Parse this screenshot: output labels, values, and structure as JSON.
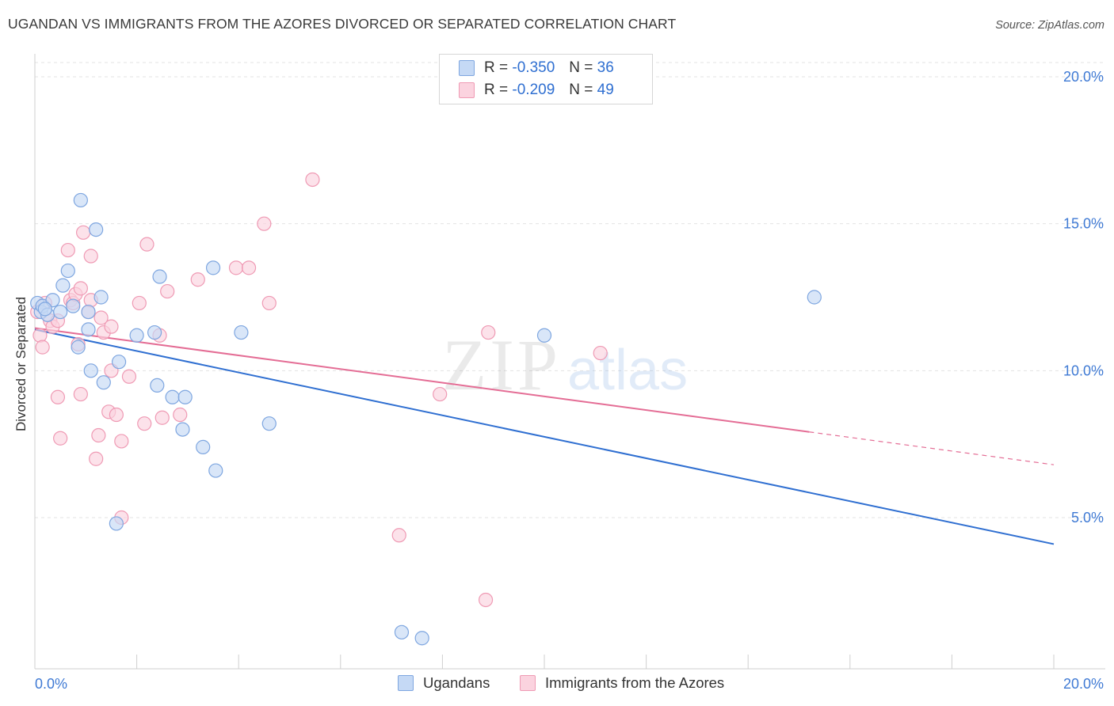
{
  "header": {
    "title": "UGANDAN VS IMMIGRANTS FROM THE AZORES DIVORCED OR SEPARATED CORRELATION CHART",
    "source": "Source: ZipAtlas.com"
  },
  "watermark": {
    "zip": "ZIP",
    "atlas": "atlas"
  },
  "legend": {
    "rows": [
      {
        "r_label": "R =",
        "r_value": "-0.350",
        "n_label": "N =",
        "n_value": "36"
      },
      {
        "r_label": "R =",
        "r_value": "-0.209",
        "n_label": "N =",
        "n_value": "49"
      }
    ]
  },
  "bottom_legend": {
    "series1": "Ugandans",
    "series2": "Immigrants from the Azores"
  },
  "colors": {
    "blue_fill": "#c5d9f5",
    "blue_stroke": "#7ea6e0",
    "blue_line": "#2f6fd1",
    "pink_fill": "#fbd3df",
    "pink_stroke": "#ef9ab4",
    "pink_line": "#e46d95",
    "grid": "#e3e3e3",
    "tick_text": "#3f7ad4"
  },
  "chart_data": {
    "type": "scatter",
    "title": "UGANDAN VS IMMIGRANTS FROM THE AZORES DIVORCED OR SEPARATED CORRELATION CHART",
    "xlabel": "",
    "ylabel": "Divorced or Separated",
    "xlim": [
      0,
      20
    ],
    "ylim": [
      0,
      20.5
    ],
    "x_tick_labels": [
      "0.0%",
      "20.0%"
    ],
    "y_ticks": [
      5,
      10,
      15,
      20
    ],
    "y_tick_labels": [
      "5.0%",
      "10.0%",
      "15.0%",
      "20.0%"
    ],
    "series": [
      {
        "name": "Ugandans",
        "r": -0.35,
        "n": 36,
        "trend": {
          "x0": 0,
          "y0": 11.4,
          "x1": 20,
          "y1": 4.1,
          "dashed_from": null
        },
        "points": [
          [
            0.05,
            12.3
          ],
          [
            0.12,
            12.0
          ],
          [
            0.15,
            12.2
          ],
          [
            0.25,
            11.9
          ],
          [
            0.35,
            12.4
          ],
          [
            0.5,
            12.0
          ],
          [
            0.55,
            12.9
          ],
          [
            0.65,
            13.4
          ],
          [
            0.75,
            12.2
          ],
          [
            0.85,
            10.8
          ],
          [
            0.9,
            15.8
          ],
          [
            1.05,
            12.0
          ],
          [
            1.05,
            11.4
          ],
          [
            1.1,
            10.0
          ],
          [
            1.2,
            14.8
          ],
          [
            1.3,
            12.5
          ],
          [
            1.35,
            9.6
          ],
          [
            1.65,
            10.3
          ],
          [
            1.6,
            4.8
          ],
          [
            2.0,
            11.2
          ],
          [
            2.35,
            11.3
          ],
          [
            2.4,
            9.5
          ],
          [
            2.45,
            13.2
          ],
          [
            2.7,
            9.1
          ],
          [
            2.9,
            8.0
          ],
          [
            2.95,
            9.1
          ],
          [
            3.3,
            7.4
          ],
          [
            3.5,
            13.5
          ],
          [
            3.55,
            6.6
          ],
          [
            4.05,
            11.3
          ],
          [
            4.6,
            8.2
          ],
          [
            7.2,
            1.1
          ],
          [
            7.6,
            0.9
          ],
          [
            10.0,
            11.2
          ],
          [
            15.3,
            12.5
          ],
          [
            0.2,
            12.1
          ]
        ]
      },
      {
        "name": "Immigrants from the Azores",
        "r": -0.209,
        "n": 49,
        "trend": {
          "x0": 0,
          "y0": 11.45,
          "x1": 20,
          "y1": 6.8,
          "dashed_from": 15.2
        },
        "points": [
          [
            0.05,
            12.0
          ],
          [
            0.1,
            11.2
          ],
          [
            0.15,
            10.8
          ],
          [
            0.2,
            12.3
          ],
          [
            0.3,
            11.7
          ],
          [
            0.35,
            11.5
          ],
          [
            0.45,
            11.7
          ],
          [
            0.45,
            9.1
          ],
          [
            0.5,
            7.7
          ],
          [
            0.65,
            14.1
          ],
          [
            0.7,
            12.4
          ],
          [
            0.75,
            12.3
          ],
          [
            0.8,
            12.6
          ],
          [
            0.85,
            10.9
          ],
          [
            0.9,
            9.2
          ],
          [
            0.9,
            12.8
          ],
          [
            0.95,
            14.7
          ],
          [
            1.05,
            12.0
          ],
          [
            1.1,
            12.4
          ],
          [
            1.1,
            13.9
          ],
          [
            1.2,
            7.0
          ],
          [
            1.25,
            7.8
          ],
          [
            1.3,
            11.8
          ],
          [
            1.35,
            11.3
          ],
          [
            1.45,
            8.6
          ],
          [
            1.5,
            11.5
          ],
          [
            1.5,
            10.0
          ],
          [
            1.6,
            8.5
          ],
          [
            1.7,
            7.6
          ],
          [
            1.7,
            5.0
          ],
          [
            1.85,
            9.8
          ],
          [
            2.05,
            12.3
          ],
          [
            2.15,
            8.2
          ],
          [
            2.2,
            14.3
          ],
          [
            2.45,
            11.2
          ],
          [
            2.5,
            8.4
          ],
          [
            2.6,
            12.7
          ],
          [
            2.85,
            8.5
          ],
          [
            3.2,
            13.1
          ],
          [
            3.95,
            13.5
          ],
          [
            4.2,
            13.5
          ],
          [
            4.5,
            15.0
          ],
          [
            4.6,
            12.3
          ],
          [
            5.45,
            16.5
          ],
          [
            7.15,
            4.4
          ],
          [
            7.95,
            9.2
          ],
          [
            8.9,
            11.3
          ],
          [
            8.85,
            2.2
          ],
          [
            11.1,
            10.6
          ]
        ]
      }
    ]
  }
}
